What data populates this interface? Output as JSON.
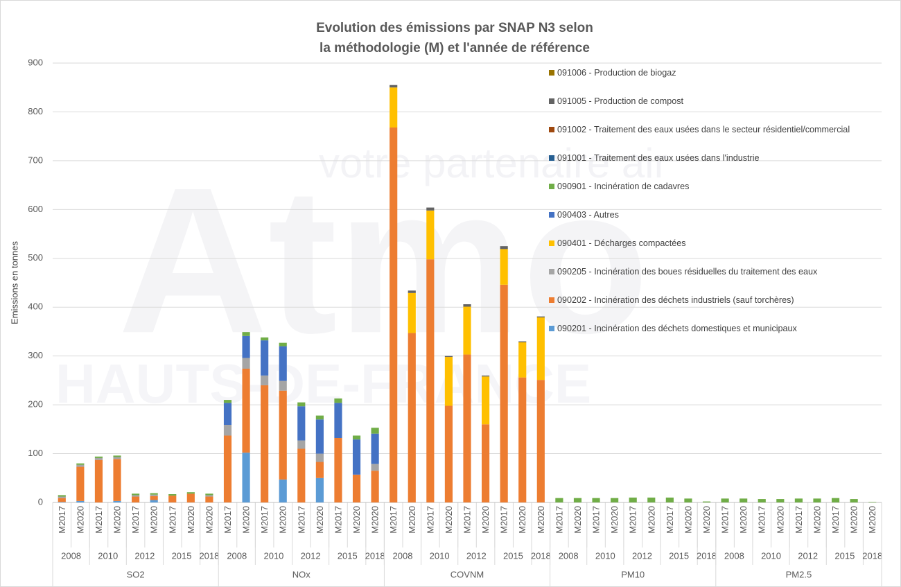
{
  "chart_data": {
    "type": "stacked_bar",
    "title": "Evolution des émissions par SNAP N3 selon",
    "subtitle": "la méthodologie (M) et l'année de référence",
    "ylabel": "Emissions en tonnes",
    "watermark": [
      "Atmo",
      "HAUTS-DE-FRANCE",
      "votre partenaire air"
    ],
    "ylim": [
      0,
      900
    ],
    "yticks": [
      0,
      100,
      200,
      300,
      400,
      500,
      600,
      700,
      800,
      900
    ],
    "grid": true,
    "groups": [
      {
        "name": "SO2",
        "years": [
          {
            "label": "2008",
            "methods": [
              "M2017",
              "M2020"
            ]
          },
          {
            "label": "2010",
            "methods": [
              "M2017",
              "M2020"
            ]
          },
          {
            "label": "2012",
            "methods": [
              "M2017",
              "M2020"
            ]
          },
          {
            "label": "2015",
            "methods": [
              "M2017",
              "M2020"
            ]
          },
          {
            "label": "2018",
            "methods": [
              "M2020"
            ]
          }
        ]
      },
      {
        "name": "NOx",
        "years": [
          {
            "label": "2008",
            "methods": [
              "M2017",
              "M2020"
            ]
          },
          {
            "label": "2010",
            "methods": [
              "M2017",
              "M2020"
            ]
          },
          {
            "label": "2012",
            "methods": [
              "M2017",
              "M2020"
            ]
          },
          {
            "label": "2015",
            "methods": [
              "M2017",
              "M2020"
            ]
          },
          {
            "label": "2018",
            "methods": [
              "M2020"
            ]
          }
        ]
      },
      {
        "name": "COVNM",
        "years": [
          {
            "label": "2008",
            "methods": [
              "M2017",
              "M2020"
            ]
          },
          {
            "label": "2010",
            "methods": [
              "M2017",
              "M2020"
            ]
          },
          {
            "label": "2012",
            "methods": [
              "M2017",
              "M2020"
            ]
          },
          {
            "label": "2015",
            "methods": [
              "M2017",
              "M2020"
            ]
          },
          {
            "label": "2018",
            "methods": [
              "M2020"
            ]
          }
        ]
      },
      {
        "name": "PM10",
        "years": [
          {
            "label": "2008",
            "methods": [
              "M2017",
              "M2020"
            ]
          },
          {
            "label": "2010",
            "methods": [
              "M2017",
              "M2020"
            ]
          },
          {
            "label": "2012",
            "methods": [
              "M2017",
              "M2020"
            ]
          },
          {
            "label": "2015",
            "methods": [
              "M2017",
              "M2020"
            ]
          },
          {
            "label": "2018",
            "methods": [
              "M2020"
            ]
          }
        ]
      },
      {
        "name": "PM2.5",
        "years": [
          {
            "label": "2008",
            "methods": [
              "M2017",
              "M2020"
            ]
          },
          {
            "label": "2010",
            "methods": [
              "M2017",
              "M2020"
            ]
          },
          {
            "label": "2012",
            "methods": [
              "M2017",
              "M2020"
            ]
          },
          {
            "label": "2015",
            "methods": [
              "M2017",
              "M2020"
            ]
          },
          {
            "label": "2018",
            "methods": [
              "M2020"
            ]
          }
        ]
      }
    ],
    "series": [
      {
        "name": "090201 - Incinération des déchets domestiques et municipaux",
        "color": "#5b9bd5",
        "values": [
          1,
          3,
          0,
          3,
          0,
          5,
          0,
          0,
          0,
          0,
          102,
          0,
          47,
          0,
          50,
          0,
          0,
          0,
          0,
          0,
          0,
          0,
          0,
          0,
          0,
          0,
          0,
          0,
          0,
          0,
          0,
          0,
          0,
          0,
          0,
          0,
          0,
          0,
          0,
          0,
          0,
          0,
          0,
          0,
          0
        ]
      },
      {
        "name": "090202 - Incinération des déchets industriels (sauf torchères)",
        "color": "#ed7d31",
        "values": [
          8,
          70,
          87,
          86,
          12,
          8,
          14,
          18,
          12,
          137,
          172,
          240,
          182,
          110,
          33,
          132,
          57,
          65,
          768,
          347,
          498,
          198,
          303,
          160,
          446,
          256,
          251,
          0,
          0,
          0,
          0,
          0,
          0,
          0,
          0,
          0,
          0,
          0,
          0,
          0,
          0,
          0,
          0,
          0,
          0
        ]
      },
      {
        "name": "090205 - Incinération des boues résiduelles du traitement des eaux",
        "color": "#a5a5a5",
        "values": [
          3,
          4,
          4,
          4,
          3,
          3,
          0,
          0,
          3,
          22,
          22,
          20,
          20,
          17,
          17,
          0,
          0,
          14,
          0,
          0,
          0,
          0,
          0,
          0,
          0,
          0,
          0,
          0,
          0,
          0,
          0,
          0,
          0,
          0,
          0,
          0,
          0,
          0,
          0,
          0,
          0,
          0,
          0,
          0,
          0
        ]
      },
      {
        "name": "090401 - Décharges compactées",
        "color": "#ffc000",
        "values": [
          0,
          0,
          0,
          0,
          0,
          0,
          0,
          0,
          0,
          0,
          0,
          0,
          0,
          0,
          0,
          0,
          0,
          0,
          82,
          82,
          100,
          100,
          98,
          98,
          73,
          72,
          128,
          0,
          0,
          0,
          0,
          0,
          0,
          0,
          0,
          0,
          0,
          0,
          0,
          0,
          0,
          0,
          0,
          0,
          0
        ]
      },
      {
        "name": "090403 - Autres",
        "color": "#4472c4",
        "values": [
          0,
          0,
          0,
          0,
          0,
          0,
          0,
          0,
          0,
          45,
          45,
          72,
          71,
          70,
          70,
          72,
          72,
          62,
          0,
          0,
          0,
          0,
          0,
          0,
          0,
          0,
          0,
          0,
          0,
          0,
          0,
          0,
          0,
          0,
          0,
          0,
          0,
          0,
          0,
          0,
          0,
          0,
          0,
          0,
          0
        ]
      },
      {
        "name": "090901 - Incinération de cadavres",
        "color": "#70ad47",
        "values": [
          3,
          3,
          3,
          3,
          3,
          3,
          3,
          3,
          3,
          6,
          8,
          6,
          7,
          8,
          8,
          9,
          8,
          12,
          0,
          0,
          0,
          0,
          0,
          0,
          0,
          0,
          0,
          9,
          9,
          9,
          9,
          10,
          10,
          10,
          8,
          2,
          8,
          8,
          7,
          7,
          8,
          8,
          9,
          7,
          1
        ]
      },
      {
        "name": "091001 - Traitement des eaux usées dans l'industrie",
        "color": "#255e91",
        "values": [
          0,
          0,
          0,
          0,
          0,
          0,
          0,
          0,
          0,
          0,
          0,
          0,
          0,
          0,
          0,
          0,
          0,
          0,
          0,
          0,
          0,
          0,
          0,
          0,
          0,
          0,
          0,
          0,
          0,
          0,
          0,
          0,
          0,
          0,
          0,
          0,
          0,
          0,
          0,
          0,
          0,
          0,
          0,
          0,
          0
        ]
      },
      {
        "name": "091002 - Traitement des eaux usées dans le secteur résidentiel/commercial",
        "color": "#9e480e",
        "values": [
          0,
          0,
          0,
          0,
          0,
          0,
          0,
          0,
          0,
          0,
          0,
          0,
          0,
          0,
          0,
          0,
          0,
          0,
          0,
          0,
          0,
          0,
          0,
          0,
          0,
          0,
          0,
          0,
          0,
          0,
          0,
          0,
          0,
          0,
          0,
          0,
          0,
          0,
          0,
          0,
          0,
          0,
          0,
          0,
          0
        ]
      },
      {
        "name": "091005 - Production de compost",
        "color": "#636363",
        "values": [
          0,
          0,
          0,
          0,
          0,
          0,
          0,
          0,
          0,
          0,
          0,
          0,
          0,
          0,
          0,
          0,
          0,
          0,
          5,
          5,
          6,
          2,
          5,
          2,
          6,
          2,
          2,
          0,
          0,
          0,
          0,
          0,
          0,
          0,
          0,
          0,
          0,
          0,
          0,
          0,
          0,
          0,
          0,
          0,
          0
        ]
      },
      {
        "name": "091006 - Production de biogaz",
        "color": "#997300",
        "values": [
          0,
          0,
          0,
          0,
          0,
          0,
          0,
          0,
          0,
          0,
          0,
          0,
          0,
          0,
          0,
          0,
          0,
          0,
          0,
          0,
          0,
          0,
          0,
          0,
          0,
          0,
          0,
          0,
          0,
          0,
          0,
          0,
          0,
          0,
          0,
          0,
          0,
          0,
          0,
          0,
          0,
          0,
          0,
          0,
          0
        ]
      }
    ]
  }
}
